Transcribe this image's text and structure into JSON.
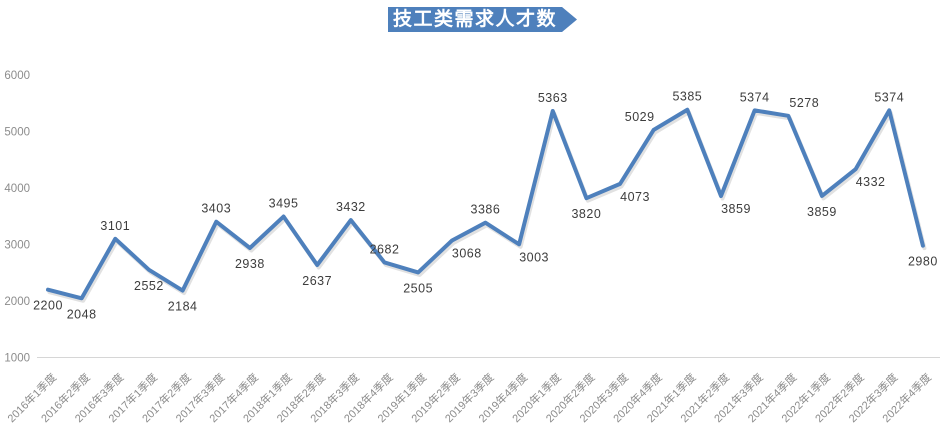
{
  "title": "技工类需求人才数",
  "chart_data": {
    "type": "line",
    "title": "技工类需求人才数",
    "categories": [
      "2016年1季度",
      "2016年2季度",
      "2016年3季度",
      "2017年1季度",
      "2017年2季度",
      "2017年3季度",
      "2017年4季度",
      "2018年1季度",
      "2018年2季度",
      "2018年3季度",
      "2018年4季度",
      "2019年1季度",
      "2019年2季度",
      "2019年3季度",
      "2019年4季度",
      "2020年1季度",
      "2020年2季度",
      "2020年3季度",
      "2020年4季度",
      "2021年1季度",
      "2021年2季度",
      "2021年3季度",
      "2021年4季度",
      "2022年1季度",
      "2022年2季度",
      "2022年3季度",
      "2022年4季度"
    ],
    "values": [
      2200,
      2048,
      3101,
      2552,
      2184,
      3403,
      2938,
      3495,
      2637,
      3432,
      2682,
      2505,
      3068,
      3386,
      3003,
      5363,
      3820,
      4073,
      5029,
      5385,
      3859,
      5374,
      5278,
      3859,
      4332,
      5374,
      2980
    ],
    "label_positions": [
      "below",
      "below",
      "above",
      "below",
      "below",
      "above",
      "below",
      "above",
      "below",
      "above",
      "above",
      "below",
      "below-right",
      "above",
      "below-right",
      "above",
      "below",
      "below-right",
      "above-left",
      "above",
      "below-right",
      "above",
      "above-right",
      "below",
      "below-right",
      "above",
      "below"
    ],
    "y_ticks": [
      1000,
      2000,
      3000,
      4000,
      5000,
      6000
    ],
    "ylim": [
      1000,
      6000
    ],
    "xlabel": "",
    "ylabel": "",
    "legend": "none",
    "grid": "bottom-axis-line-only",
    "x_label_rotation_deg": 45,
    "line_color": "#4E80BC",
    "data_label_color": "#3D3D3D",
    "axis_text_color": "#8C8C8C",
    "axis_line_color": "#D6D6D6",
    "banner_color": "#4E80BC",
    "banner_text_color": "#FFFFFF"
  }
}
